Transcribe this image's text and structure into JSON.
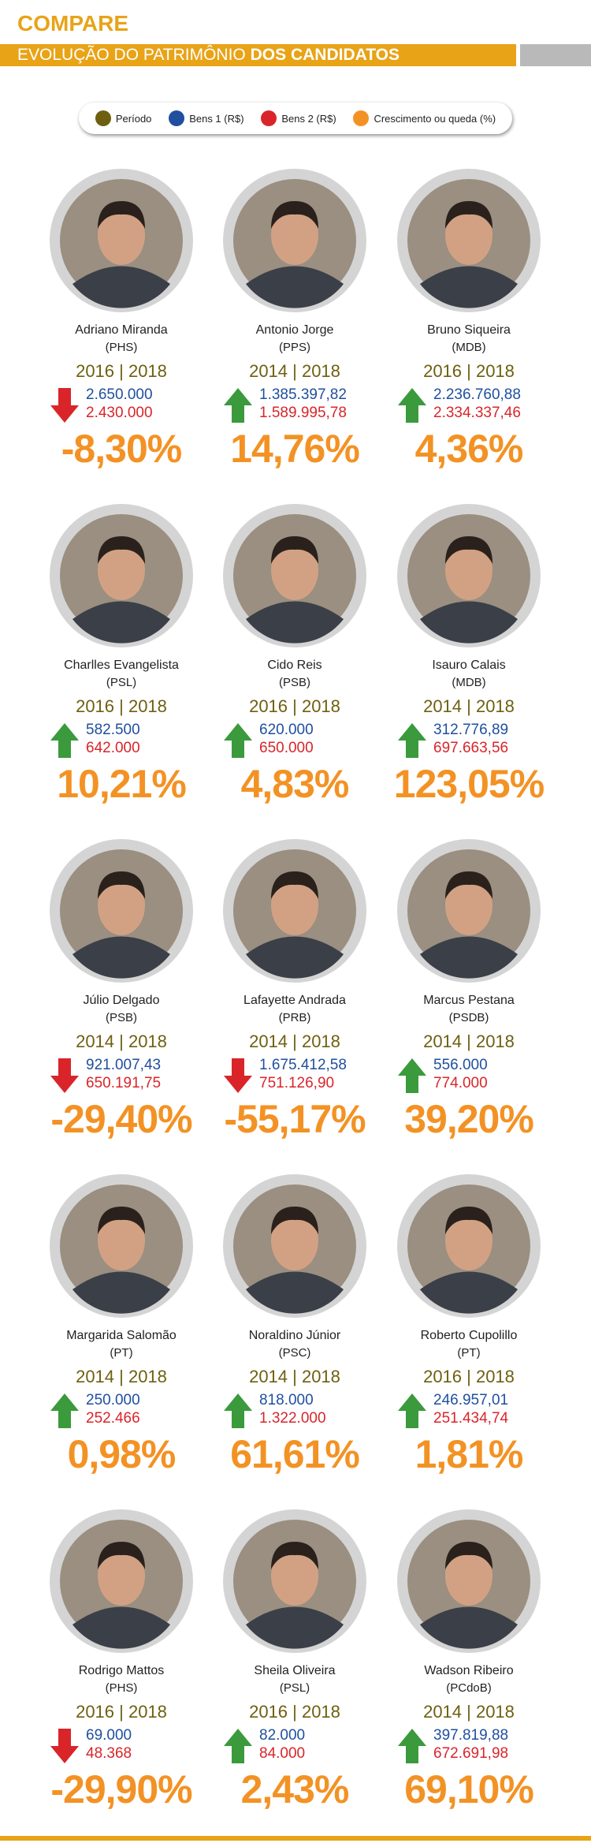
{
  "header": {
    "title": "COMPARE",
    "subtitle": "EVOLUÇÃO DO PATRIMÔNIO",
    "subtitle_bold": "DOS CANDIDATOS"
  },
  "legend": [
    {
      "label": "Período",
      "color": "#6e5f10"
    },
    {
      "label": "Bens 1 (R$)",
      "color": "#1f4f9e"
    },
    {
      "label": "Bens 2 (R$)",
      "color": "#d9252a"
    },
    {
      "label": "Crescimento  ou queda (%)",
      "color": "#f39224"
    }
  ],
  "candidates": [
    {
      "name": "Adriano Miranda",
      "party": "(PHS)",
      "period": "2016 | 2018",
      "bens1": "2.650.000",
      "bens2": "2.430.000",
      "change": "-8,30%",
      "trend": "down"
    },
    {
      "name": "Antonio Jorge",
      "party": "(PPS)",
      "period": "2014 | 2018",
      "bens1": "1.385.397,82",
      "bens2": "1.589.995,78",
      "change": "14,76%",
      "trend": "up"
    },
    {
      "name": "Bruno Siqueira",
      "party": "(MDB)",
      "period": "2016 | 2018",
      "bens1": "2.236.760,88",
      "bens2": "2.334.337,46",
      "change": "4,36%",
      "trend": "up"
    },
    {
      "name": "Charlles Evangelista",
      "party": "(PSL)",
      "period": "2016 | 2018",
      "bens1": "582.500",
      "bens2": "642.000",
      "change": "10,21%",
      "trend": "up"
    },
    {
      "name": "Cido Reis",
      "party": "(PSB)",
      "period": "2016 | 2018",
      "bens1": "620.000",
      "bens2": "650.000",
      "change": "4,83%",
      "trend": "up"
    },
    {
      "name": "Isauro Calais",
      "party": "(MDB)",
      "period": "2014 | 2018",
      "bens1": "312.776,89",
      "bens2": "697.663,56",
      "change": "123,05%",
      "trend": "up"
    },
    {
      "name": "Júlio Delgado",
      "party": "(PSB)",
      "period": "2014 | 2018",
      "bens1": "921.007,43",
      "bens2": "650.191,75",
      "change": "-29,40%",
      "trend": "down"
    },
    {
      "name": "Lafayette Andrada",
      "party": "(PRB)",
      "period": "2014 | 2018",
      "bens1": "1.675.412,58",
      "bens2": "751.126,90",
      "change": "-55,17%",
      "trend": "down"
    },
    {
      "name": "Marcus Pestana",
      "party": "(PSDB)",
      "period": "2014 | 2018",
      "bens1": "556.000",
      "bens2": "774.000",
      "change": "39,20%",
      "trend": "up"
    },
    {
      "name": "Margarida Salomão",
      "party": "(PT)",
      "period": "2014 | 2018",
      "bens1": "250.000",
      "bens2": "252.466",
      "change": "0,98%",
      "trend": "up"
    },
    {
      "name": "Noraldino Júnior",
      "party": "(PSC)",
      "period": "2014 | 2018",
      "bens1": "818.000",
      "bens2": "1.322.000",
      "change": "61,61%",
      "trend": "up"
    },
    {
      "name": "Roberto Cupolillo",
      "party": "(PT)",
      "period": "2016 | 2018",
      "bens1": "246.957,01",
      "bens2": "251.434,74",
      "change": "1,81%",
      "trend": "up"
    },
    {
      "name": "Rodrigo Mattos",
      "party": "(PHS)",
      "period": "2016 | 2018",
      "bens1": "69.000",
      "bens2": "48.368",
      "change": "-29,90%",
      "trend": "down"
    },
    {
      "name": "Sheila Oliveira",
      "party": "(PSL)",
      "period": "2016 | 2018",
      "bens1": "82.000",
      "bens2": "84.000",
      "change": "2,43%",
      "trend": "up"
    },
    {
      "name": "Wadson Ribeiro",
      "party": "(PCdoB)",
      "period": "2014 | 2018",
      "bens1": "397.819,88",
      "bens2": "672.691,98",
      "change": "69,10%",
      "trend": "up"
    }
  ]
}
